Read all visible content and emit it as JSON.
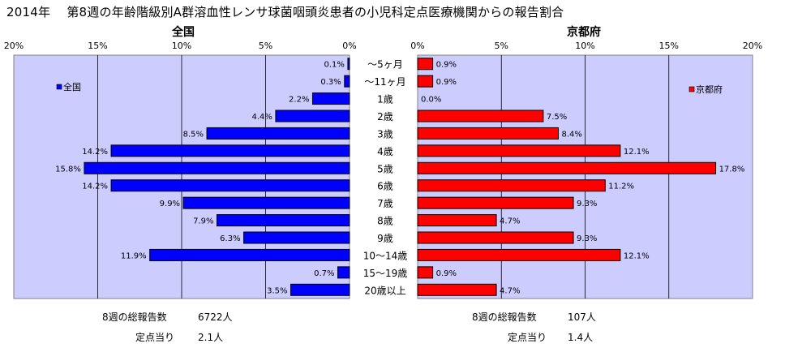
{
  "title": "2014年　 第8週の年齢階級別A群溶血性レンサ球菌咽頭炎患者の小児科定点医療機関からの報告割合",
  "chart_data": {
    "type": "bar",
    "orientation": "horizontal-butterfly",
    "categories": [
      "～5ヶ月",
      "～11ヶ月",
      "1歳",
      "2歳",
      "3歳",
      "4歳",
      "5歳",
      "6歳",
      "7歳",
      "8歳",
      "9歳",
      "10～14歳",
      "15～19歳",
      "20歳以上"
    ],
    "xlim": [
      0,
      20
    ],
    "tick_labels": [
      "0%",
      "5%",
      "10%",
      "15%",
      "20%"
    ],
    "gridlines": true,
    "plot_background": "#ccccff",
    "series": [
      {
        "name": "全国",
        "panel_title": "全国",
        "legend_label": "全国",
        "legend_position": "top-left",
        "color": "#0000ff",
        "values": [
          0.1,
          0.3,
          2.2,
          4.4,
          8.5,
          14.2,
          15.8,
          14.2,
          9.9,
          7.9,
          6.3,
          11.9,
          0.7,
          3.5
        ],
        "labels": [
          "0.1%",
          "0.3%",
          "2.2%",
          "4.4%",
          "8.5%",
          "14.2%",
          "15.8%",
          "14.2%",
          "9.9%",
          "7.9%",
          "6.3%",
          "11.9%",
          "0.7%",
          "3.5%"
        ]
      },
      {
        "name": "京都府",
        "panel_title": "京都府",
        "legend_label": "京都府",
        "legend_position": "top-right",
        "color": "#ff0000",
        "values": [
          0.9,
          0.9,
          0.0,
          7.5,
          8.4,
          12.1,
          17.8,
          11.2,
          9.3,
          4.7,
          9.3,
          12.1,
          0.9,
          4.7
        ],
        "labels": [
          "0.9%",
          "0.9%",
          "0.0%",
          "7.5%",
          "8.4%",
          "12.1%",
          "17.8%",
          "11.2%",
          "9.3%",
          "4.7%",
          "9.3%",
          "12.1%",
          "0.9%",
          "4.7%"
        ]
      }
    ]
  },
  "footer": {
    "national": {
      "total_label": "8週の総報告数",
      "total_value": "6722人",
      "per_site_label": "定点当り",
      "per_site_value": "2.1人"
    },
    "kyoto": {
      "total_label": "8週の総報告数",
      "total_value": "107人",
      "per_site_label": "定点当り",
      "per_site_value": "1.4人"
    }
  }
}
